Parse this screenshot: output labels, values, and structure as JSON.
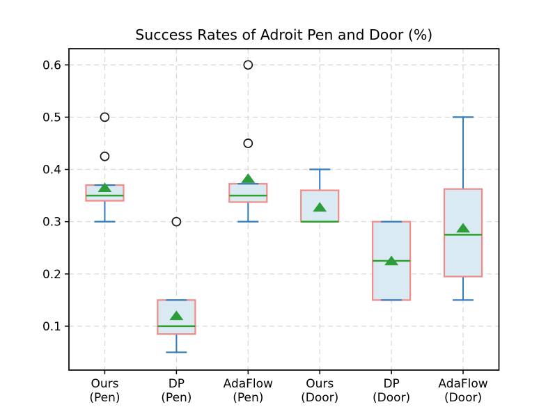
{
  "chart_data": {
    "type": "boxplot",
    "title": "Success Rates of Adroit Pen and Door (%)",
    "xlabel": "",
    "ylabel": "",
    "categories": [
      [
        "Ours",
        "(Pen)"
      ],
      [
        "DP",
        "(Pen)"
      ],
      [
        "AdaFlow",
        "(Pen)"
      ],
      [
        "Ours",
        "(Door)"
      ],
      [
        "DP",
        "(Door)"
      ],
      [
        "AdaFlow",
        "(Door)"
      ]
    ],
    "yticks": [
      0.1,
      0.2,
      0.3,
      0.4,
      0.5,
      0.6
    ],
    "ylim": [
      0.016,
      0.631
    ],
    "grid": {
      "horizontal": true,
      "vertical": true,
      "style": "dashed"
    },
    "legend": null,
    "boxes": [
      {
        "label": "Ours (Pen)",
        "whislo": 0.3,
        "q1": 0.34,
        "med": 0.35,
        "q3": 0.37,
        "whishi": 0.37,
        "mean": 0.365,
        "fliers": [
          0.425,
          0.5
        ]
      },
      {
        "label": "DP (Pen)",
        "whislo": 0.05,
        "q1": 0.085,
        "med": 0.1,
        "q3": 0.15,
        "whishi": 0.15,
        "mean": 0.12,
        "fliers": [
          0.3
        ]
      },
      {
        "label": "AdaFlow (Pen)",
        "whislo": 0.3,
        "q1": 0.3375,
        "med": 0.35,
        "q3": 0.3725,
        "whishi": 0.3725,
        "mean": 0.3825,
        "fliers": [
          0.45,
          0.6
        ]
      },
      {
        "label": "Ours (Door)",
        "whislo": 0.3,
        "q1": 0.3,
        "med": 0.3,
        "q3": 0.36,
        "whishi": 0.4,
        "mean": 0.3275,
        "fliers": []
      },
      {
        "label": "DP (Door)",
        "whislo": 0.15,
        "q1": 0.15,
        "med": 0.225,
        "q3": 0.3,
        "whishi": 0.3,
        "mean": 0.225,
        "fliers": []
      },
      {
        "label": "AdaFlow (Door)",
        "whislo": 0.15,
        "q1": 0.195,
        "med": 0.275,
        "q3": 0.3625,
        "whishi": 0.5,
        "mean": 0.2875,
        "fliers": []
      }
    ],
    "colors": {
      "box_edge": "#f28a86",
      "box_fill": "#daeaf2",
      "median": "#2ca02c",
      "mean_marker": "#2c9d3a",
      "whisker": "#2f7bbf",
      "outlier_edge": "#1a1a1a",
      "outlier_fill": "#ffffff",
      "grid": "#d9d9d9",
      "frame": "#000000"
    }
  }
}
